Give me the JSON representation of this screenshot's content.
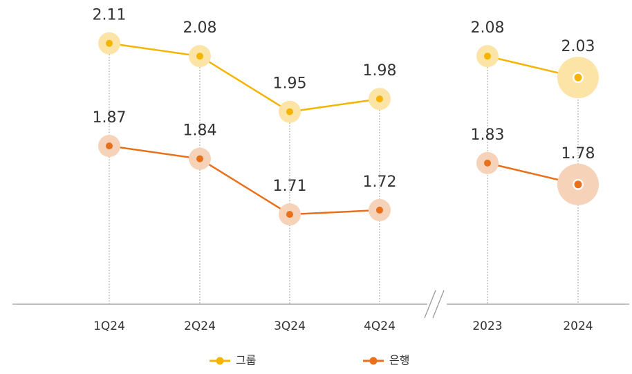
{
  "chart_data": {
    "type": "line",
    "categories": [
      "1Q24",
      "2Q24",
      "3Q24",
      "4Q24",
      "2023",
      "2024"
    ],
    "series": [
      {
        "name": "그룹",
        "color": "#f5b400",
        "values": [
          2.11,
          2.08,
          1.95,
          1.98,
          2.08,
          2.03
        ]
      },
      {
        "name": "은행",
        "color": "#e8701a",
        "values": [
          1.87,
          1.84,
          1.71,
          1.72,
          1.83,
          1.78
        ]
      }
    ],
    "ylim": [
      1.5,
      2.2
    ],
    "axis_break_after": 3,
    "legend": "bottom"
  }
}
